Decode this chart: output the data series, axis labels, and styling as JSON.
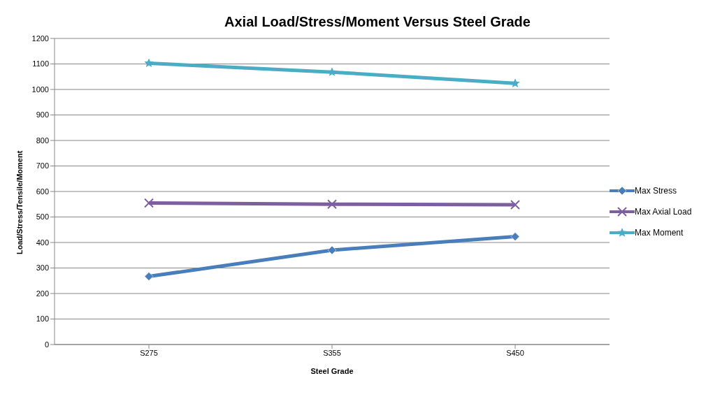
{
  "chart_data": {
    "type": "line",
    "title": "Axial Load/Stress/Moment Versus Steel Grade",
    "xlabel": "Steel Grade",
    "ylabel": "Load/Stress/Tensile/Moment",
    "categories": [
      "S275",
      "S355",
      "S450"
    ],
    "series": [
      {
        "name": "Max Stress",
        "color": "#4a7ebb",
        "marker": "diamond",
        "values": [
          267,
          370,
          423
        ]
      },
      {
        "name": "Max Axial Load",
        "color": "#7d5fa0",
        "marker": "cross",
        "values": [
          555,
          550,
          548
        ]
      },
      {
        "name": "Max Moment",
        "color": "#4bacc6",
        "marker": "star",
        "values": [
          1103,
          1068,
          1024
        ]
      }
    ],
    "ylim": [
      0,
      1200
    ],
    "yticks": [
      0,
      100,
      200,
      300,
      400,
      500,
      600,
      700,
      800,
      900,
      1000,
      1100,
      1200
    ],
    "grid": "y",
    "legend": "right",
    "line_style": "solid"
  }
}
